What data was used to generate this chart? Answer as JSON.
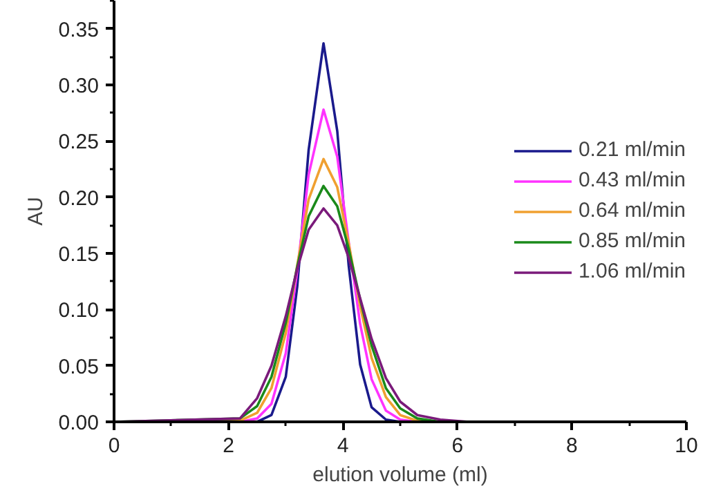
{
  "chart_data": {
    "type": "line",
    "xlabel": "elution volume (ml)",
    "ylabel": "AU",
    "x": [
      0,
      2.2,
      2.5,
      2.75,
      3.0,
      3.2,
      3.4,
      3.66,
      3.9,
      4.1,
      4.3,
      4.5,
      4.75,
      5.0,
      5.3,
      5.7,
      6.2,
      10
    ],
    "series": [
      {
        "name": "0.21 ml/min",
        "color": "#1a1a8c",
        "values": [
          0,
          0,
          0,
          0.006,
          0.04,
          0.12,
          0.242,
          0.337,
          0.259,
          0.139,
          0.051,
          0.013,
          0.002,
          0,
          0,
          null,
          null,
          null
        ]
      },
      {
        "name": "0.43 ml/min",
        "color": "#ff33ff",
        "values": [
          0,
          0,
          0.003,
          0.016,
          0.061,
          0.134,
          0.22,
          0.278,
          0.236,
          0.16,
          0.087,
          0.038,
          0.01,
          0.002,
          0,
          0,
          null,
          null
        ]
      },
      {
        "name": "0.64 ml/min",
        "color": "#f0a030",
        "values": [
          0,
          0.001,
          0.008,
          0.03,
          0.079,
          0.139,
          0.198,
          0.234,
          0.209,
          0.159,
          0.103,
          0.057,
          0.022,
          0.006,
          0.001,
          0,
          null,
          null
        ]
      },
      {
        "name": "0.85 ml/min",
        "color": "#1a8a1a",
        "values": [
          0,
          0.003,
          0.014,
          0.04,
          0.088,
          0.138,
          0.183,
          0.21,
          0.192,
          0.154,
          0.109,
          0.068,
          0.03,
          0.012,
          0.003,
          0,
          0,
          0
        ]
      },
      {
        "name": "1.06 ml/min",
        "color": "#7a1a7a",
        "values": [
          0,
          0.003,
          0.021,
          0.05,
          0.094,
          0.136,
          0.171,
          0.19,
          0.175,
          0.146,
          0.11,
          0.074,
          0.039,
          0.018,
          0.006,
          0.002,
          0,
          0
        ]
      }
    ],
    "xlim": [
      0,
      10
    ],
    "xticks": [
      0,
      2,
      4,
      6,
      8,
      10
    ],
    "ylim": [
      0,
      0.375
    ],
    "yticks": [
      {
        "value": 0,
        "label": "0.00"
      },
      {
        "value": 0.05,
        "label": "0.05"
      },
      {
        "value": 0.1,
        "label": "0.10"
      },
      {
        "value": 0.15,
        "label": "0.15"
      },
      {
        "value": 0.2,
        "label": "0.20"
      },
      {
        "value": 0.25,
        "label": "0.25"
      },
      {
        "value": 0.3,
        "label": "0.30"
      },
      {
        "value": 0.35,
        "label": "0.35"
      }
    ],
    "grid": false,
    "legend": "right",
    "line_style": "solid",
    "marker": "none"
  }
}
